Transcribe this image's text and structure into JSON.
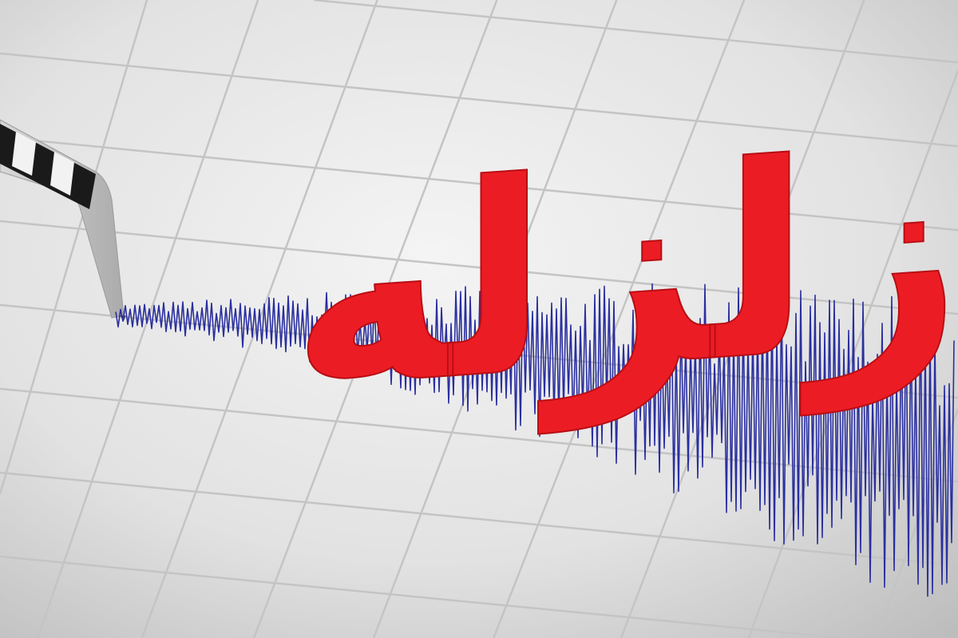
{
  "image": {
    "headline": "زلزله",
    "colors": {
      "headline": "#ec1c24",
      "trace": "#2a2f9e",
      "paper": "#e6e6e6",
      "grid": "#c4c4c4"
    },
    "icons": [
      "seismograph-needle-icon"
    ]
  }
}
